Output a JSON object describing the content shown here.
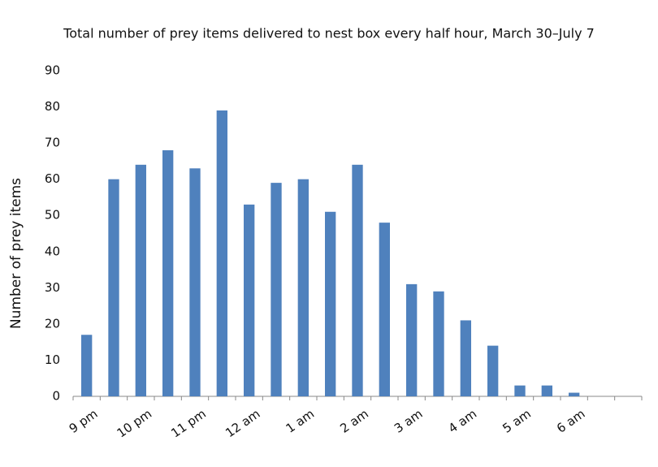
{
  "chart_data": {
    "type": "bar",
    "title": "Total number of prey items delivered to nest box every half hour, March 30–July 7",
    "y_label": "Number of prey items",
    "categories": [
      "9 pm",
      null,
      "10 pm",
      null,
      "11 pm",
      null,
      "12 am",
      null,
      "1 am",
      null,
      "2 am",
      null,
      "3 am",
      null,
      "4 am",
      null,
      "5 am",
      null,
      "6 am",
      null,
      null
    ],
    "values": [
      17,
      60,
      64,
      68,
      63,
      79,
      53,
      59,
      60,
      51,
      64,
      48,
      31,
      29,
      21,
      14,
      3,
      3,
      1,
      0,
      0
    ],
    "color": "#4f81bd",
    "ylim": [
      0,
      90
    ],
    "yticks": [
      0,
      10,
      20,
      30,
      40,
      50,
      60,
      70,
      80,
      90
    ],
    "grid": false
  }
}
